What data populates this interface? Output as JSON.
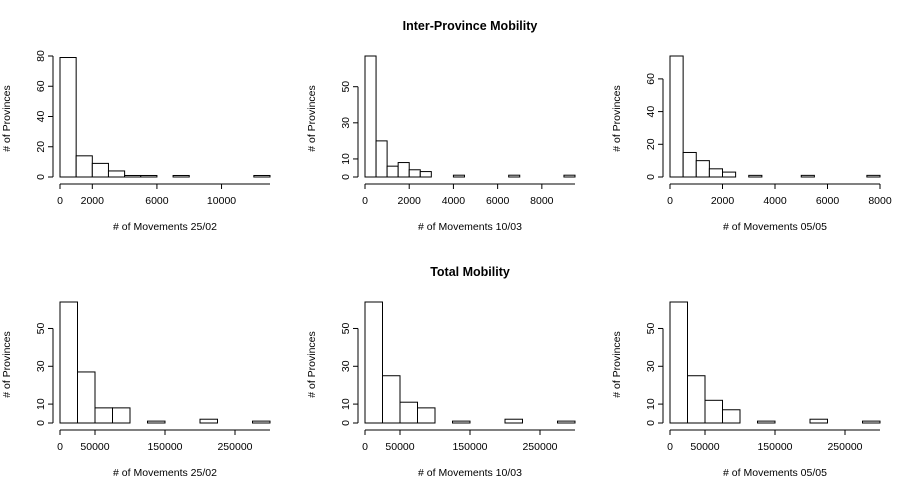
{
  "titles": {
    "top": "Inter-Province Mobility",
    "bottom": "Total Mobility"
  },
  "chart_data": [
    {
      "type": "bar",
      "xlabel": "# of Movements 25/02",
      "ylabel": "# of Provinces",
      "bin_edges": [
        0,
        1000,
        2000,
        3000,
        4000,
        5000,
        6000,
        7000,
        8000,
        9000,
        10000,
        11000,
        12000,
        13000
      ],
      "counts": [
        79,
        14,
        9,
        4,
        1,
        1,
        0,
        1,
        0,
        0,
        0,
        0,
        1
      ],
      "xticks": [
        0,
        2000,
        6000,
        10000
      ],
      "yticks": [
        0,
        20,
        40,
        60,
        80
      ],
      "ylim": [
        0,
        80
      ]
    },
    {
      "type": "bar",
      "xlabel": "# of Movements 10/03",
      "ylabel": "# of Provinces",
      "bin_edges": [
        0,
        500,
        1000,
        1500,
        2000,
        2500,
        3000,
        3500,
        4000,
        4500,
        5000,
        5500,
        6000,
        6500,
        7000,
        7500,
        8000,
        8500,
        9000,
        9500
      ],
      "counts": [
        67,
        20,
        6,
        8,
        4,
        3,
        0,
        0,
        1,
        0,
        0,
        0,
        0,
        1,
        0,
        0,
        0,
        0,
        1
      ],
      "xticks": [
        0,
        2000,
        4000,
        6000,
        8000
      ],
      "yticks": [
        0,
        10,
        30,
        50
      ],
      "ylim": [
        0,
        67
      ]
    },
    {
      "type": "bar",
      "xlabel": "# of Movements 05/05",
      "ylabel": "# of Provinces",
      "bin_edges": [
        0,
        500,
        1000,
        1500,
        2000,
        2500,
        3000,
        3500,
        4000,
        4500,
        5000,
        5500,
        6000,
        6500,
        7000,
        7500,
        8000
      ],
      "counts": [
        74,
        15,
        10,
        5,
        3,
        0,
        1,
        0,
        0,
        0,
        1,
        0,
        0,
        0,
        0,
        1
      ],
      "xticks": [
        0,
        2000,
        4000,
        6000,
        8000
      ],
      "yticks": [
        0,
        20,
        40,
        60
      ],
      "ylim": [
        0,
        74
      ]
    },
    {
      "type": "bar",
      "xlabel": "# of Movements 25/02",
      "ylabel": "# of Provinces",
      "bin_edges": [
        0,
        25000,
        50000,
        75000,
        100000,
        125000,
        150000,
        175000,
        200000,
        225000,
        250000,
        275000,
        300000
      ],
      "counts": [
        64,
        27,
        8,
        8,
        0,
        1,
        0,
        0,
        2,
        0,
        0,
        1
      ],
      "xticks": [
        0,
        50000,
        150000,
        250000
      ],
      "yticks": [
        0,
        10,
        30,
        50
      ],
      "ylim": [
        0,
        64
      ]
    },
    {
      "type": "bar",
      "xlabel": "# of Movements 10/03",
      "ylabel": "# of Provinces",
      "bin_edges": [
        0,
        25000,
        50000,
        75000,
        100000,
        125000,
        150000,
        175000,
        200000,
        225000,
        250000,
        275000,
        300000
      ],
      "counts": [
        64,
        25,
        11,
        8,
        0,
        1,
        0,
        0,
        2,
        0,
        0,
        1
      ],
      "xticks": [
        0,
        50000,
        150000,
        250000
      ],
      "yticks": [
        0,
        10,
        30,
        50
      ],
      "ylim": [
        0,
        64
      ]
    },
    {
      "type": "bar",
      "xlabel": "# of Movements 05/05",
      "ylabel": "# of Provinces",
      "bin_edges": [
        0,
        25000,
        50000,
        75000,
        100000,
        125000,
        150000,
        175000,
        200000,
        225000,
        250000,
        275000,
        300000
      ],
      "counts": [
        64,
        25,
        12,
        7,
        0,
        1,
        0,
        0,
        2,
        0,
        0,
        1
      ],
      "xticks": [
        0,
        50000,
        150000,
        250000
      ],
      "yticks": [
        0,
        10,
        30,
        50
      ],
      "ylim": [
        0,
        64
      ]
    }
  ]
}
